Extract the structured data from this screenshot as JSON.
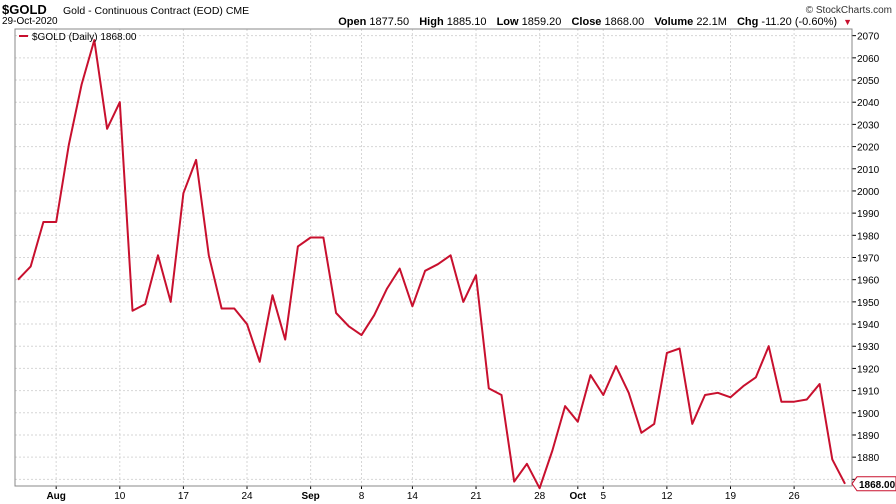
{
  "header": {
    "symbol": "$GOLD",
    "name": "Gold - Continuous Contract (EOD)",
    "exchange": "CME",
    "credit": "© StockCharts.com",
    "date": "29-Oct-2020",
    "open_label": "Open",
    "open": "1877.50",
    "high_label": "High",
    "high": "1885.10",
    "low_label": "Low",
    "low": "1859.20",
    "close_label": "Close",
    "close": "1868.00",
    "volume_label": "Volume",
    "volume": "22.1M",
    "chg_label": "Chg",
    "chg": "-11.20 (-0.60%)"
  },
  "colors": {
    "line": "#c8102e",
    "grid": "#d6d6d6",
    "axis": "#000000"
  },
  "chart_data": {
    "type": "line",
    "legend": "$GOLD (Daily) 1868.00",
    "last_value_label": "1868.00",
    "grid": true,
    "ylim": [
      1867,
      2073
    ],
    "y_ticks": [
      2070,
      2060,
      2050,
      2040,
      2030,
      2020,
      2010,
      2000,
      1990,
      1980,
      1970,
      1960,
      1950,
      1940,
      1930,
      1920,
      1910,
      1900,
      1890,
      1880,
      1870
    ],
    "x_labels": [
      {
        "label": "Aug",
        "index": 3,
        "bold": true
      },
      {
        "label": "10",
        "index": 8,
        "bold": false
      },
      {
        "label": "17",
        "index": 13,
        "bold": false
      },
      {
        "label": "24",
        "index": 18,
        "bold": false
      },
      {
        "label": "Sep",
        "index": 23,
        "bold": true
      },
      {
        "label": "8",
        "index": 27,
        "bold": false
      },
      {
        "label": "14",
        "index": 31,
        "bold": false
      },
      {
        "label": "21",
        "index": 36,
        "bold": false
      },
      {
        "label": "28",
        "index": 41,
        "bold": false
      },
      {
        "label": "Oct",
        "index": 44,
        "bold": true
      },
      {
        "label": "5",
        "index": 46,
        "bold": false
      },
      {
        "label": "12",
        "index": 51,
        "bold": false
      },
      {
        "label": "19",
        "index": 56,
        "bold": false
      },
      {
        "label": "26",
        "index": 61,
        "bold": false
      }
    ],
    "values": [
      1960,
      1966,
      1986,
      1986,
      2021,
      2048,
      2068,
      2028,
      2040,
      1946,
      1949,
      1971,
      1950,
      1999,
      2014,
      1971,
      1947,
      1947,
      1940,
      1923,
      1953,
      1933,
      1975,
      1979,
      1979,
      1945,
      1939,
      1935,
      1944,
      1956,
      1965,
      1948,
      1964,
      1967,
      1971,
      1950,
      1962,
      1911,
      1908,
      1869,
      1877,
      1866,
      1883,
      1903,
      1896,
      1917,
      1908,
      1921,
      1909,
      1891,
      1895,
      1927,
      1929,
      1895,
      1908,
      1909,
      1907,
      1912,
      1916,
      1930,
      1905,
      1905,
      1906,
      1913,
      1879,
      1868
    ]
  }
}
